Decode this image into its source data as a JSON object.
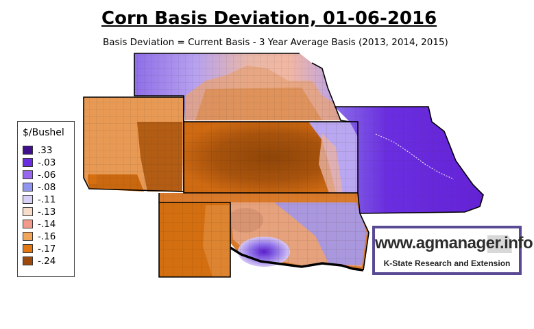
{
  "title": "Corn Basis Deviation, 01-06-2016",
  "subtitle": "Basis Deviation = Current Basis - 3 Year Average Basis (2013, 2014, 2015)",
  "legend": {
    "title": "$/Bushel",
    "items": [
      {
        "label": ".33",
        "color": "#3f0f8c"
      },
      {
        "label": "-.03",
        "color": "#6a2ee0"
      },
      {
        "label": "-.06",
        "color": "#9966ee"
      },
      {
        "label": "-.08",
        "color": "#8f95ee"
      },
      {
        "label": "-.11",
        "color": "#d9d0f7"
      },
      {
        "label": "-.13",
        "color": "#f8dcca"
      },
      {
        "label": "-.14",
        "color": "#f29a8a"
      },
      {
        "label": "-.16",
        "color": "#f0a55a"
      },
      {
        "label": "-.17",
        "color": "#e27813"
      },
      {
        "label": "-.24",
        "color": "#9b4a0b"
      }
    ]
  },
  "logo": {
    "url_text": "www.agmanager.info",
    "org_text": "K-State Research and Extension"
  }
}
